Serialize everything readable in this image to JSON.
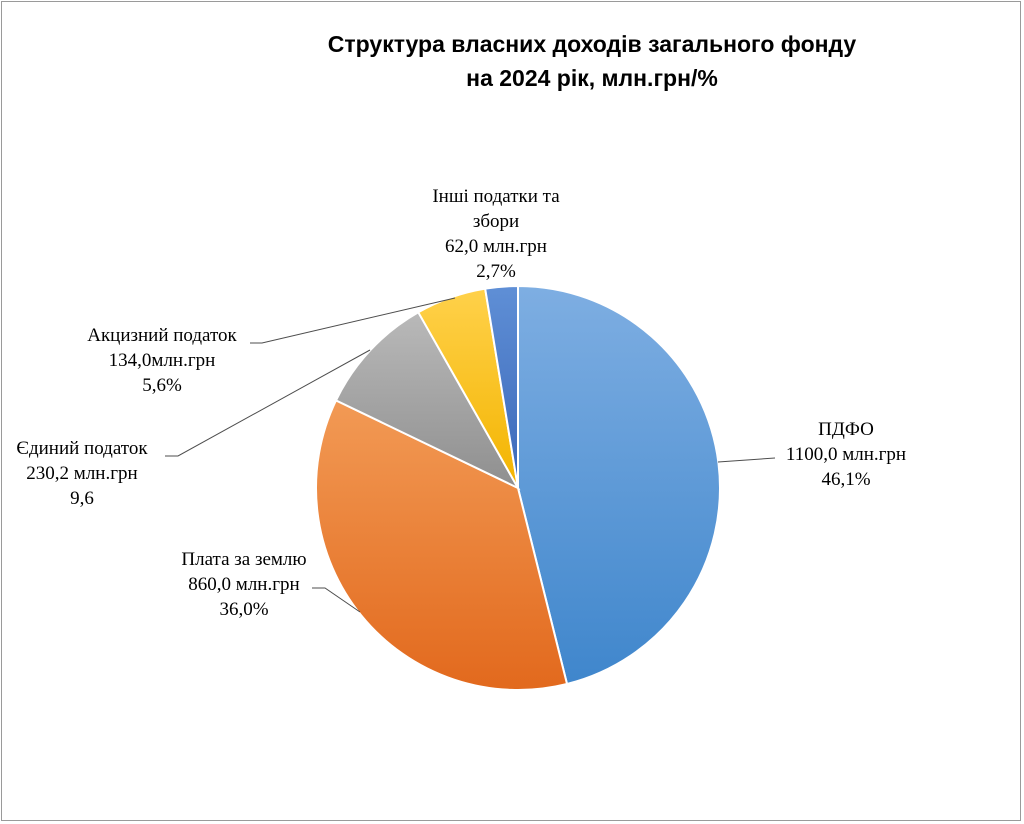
{
  "title_line1": "Структура власних доходів загального фонду",
  "title_line2": "на 2024 рік, млн.грн/%",
  "chart_data": {
    "type": "pie",
    "title": "Структура власних доходів загального фонду на 2024 рік, млн.грн/%",
    "slices": [
      {
        "label": "ПДФО",
        "value": 1100.0,
        "value_text": "1100,0 млн.грн",
        "percent_text": "46,1%",
        "color_light": "#7eaee2",
        "color_dark": "#3f86cc"
      },
      {
        "label": "Плата за землю",
        "value": 860.0,
        "value_text": "860,0 млн.грн",
        "percent_text": "36,0%",
        "color_light": "#f29a55",
        "color_dark": "#e2691d"
      },
      {
        "label": "Єдиний податок",
        "value": 230.2,
        "value_text": "230,2 млн.грн",
        "percent_text": "9,6",
        "color_light": "#b9b9b9",
        "color_dark": "#8f8f8f"
      },
      {
        "label": "Акцизний податок",
        "value": 134.0,
        "value_text": "134,0млн.грн",
        "percent_text": "5,6%",
        "color_light": "#ffd14a",
        "color_dark": "#f3b400"
      },
      {
        "label": "Інші податки та збори",
        "value": 62.0,
        "value_text": "62,0 млн.грн",
        "percent_text": "2,7%",
        "color_light": "#5f8fd6",
        "color_dark": "#3a67b8"
      }
    ],
    "labels": {
      "pdfo": [
        "ПДФО",
        "1100,0 млн.грн",
        "46,1%"
      ],
      "land": [
        "Плата за землю",
        "860,0 млн.грн",
        "36,0%"
      ],
      "single": [
        "Єдиний податок",
        "230,2 млн.грн",
        "9,6"
      ],
      "excise": [
        "Акцизний податок",
        "134,0млн.грн",
        "5,6%"
      ],
      "other": [
        "Інші податки та",
        "збори",
        "62,0 млн.грн",
        "2,7%"
      ]
    }
  }
}
